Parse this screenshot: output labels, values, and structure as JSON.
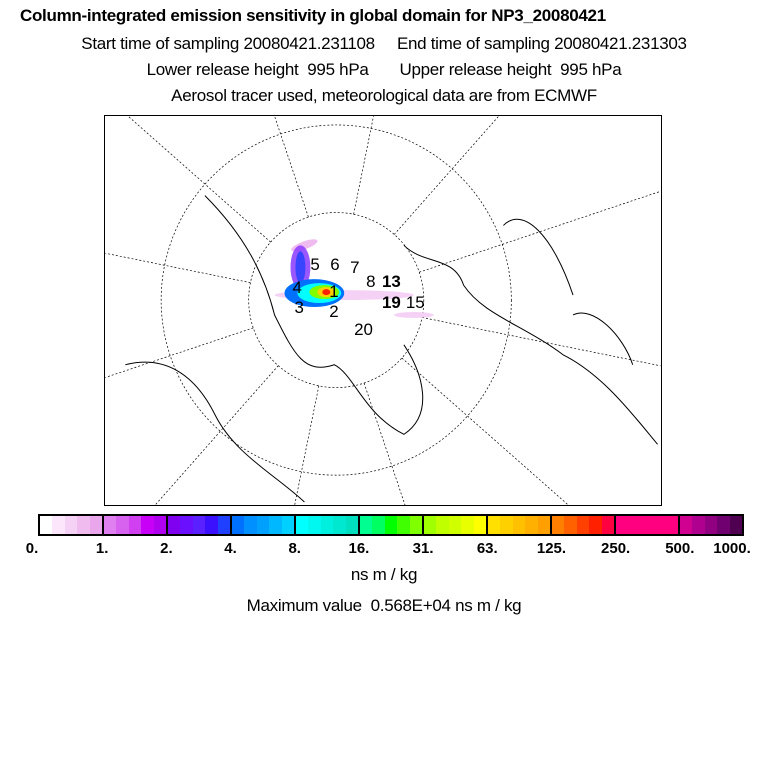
{
  "header": {
    "title": "Column-integrated emission sensitivity in global domain for NP3_20080421",
    "line2": "Start time of sampling 20080421.231108     End time of sampling 20080421.231303",
    "line3": "Lower release height  995 hPa       Upper release height  995 hPa",
    "line4": "Aerosol tracer used, meteorological data are from ECMWF"
  },
  "map": {
    "day_labels": [
      "1",
      "2",
      "3",
      "4",
      "5",
      "6",
      "7",
      "8",
      "13",
      "19",
      "15",
      "20"
    ]
  },
  "colorbar": {
    "ticks": [
      "0.",
      "1.",
      "2.",
      "4.",
      "8.",
      "16.",
      "31.",
      "63.",
      "125.",
      "250.",
      "500.",
      "1000."
    ],
    "colors": [
      [
        "#ffffff",
        "#fbe6fb",
        "#f5d2f5",
        "#f0bcf0",
        "#eaa6ea"
      ],
      [
        "#e080f0",
        "#d862f0",
        "#d040f0",
        "#c800f8",
        "#b000f0"
      ],
      [
        "#8000f0",
        "#6a10ff",
        "#5a20ff",
        "#3a10ff",
        "#2040ff"
      ],
      [
        "#0070ff",
        "#0090ff",
        "#00a0ff",
        "#00b8ff",
        "#00d0ff"
      ],
      [
        "#00ffff",
        "#00f8f0",
        "#00f0e0",
        "#00e8d0",
        "#00e0c0"
      ],
      [
        "#00ff90",
        "#00ff60",
        "#00ff00",
        "#40ff00",
        "#80ff00"
      ],
      [
        "#a0ff00",
        "#c0ff00",
        "#d0ff00",
        "#e8ff00",
        "#ffff00"
      ],
      [
        "#ffe000",
        "#ffd000",
        "#ffc000",
        "#ffb000",
        "#ffa000"
      ],
      [
        "#ff8000",
        "#ff6000",
        "#ff4000",
        "#ff2000",
        "#ff0040"
      ],
      [
        "#ff0080",
        "#ff0080",
        "#ff0080",
        "#ff0080",
        "#ff0080"
      ],
      [
        "#d00090",
        "#b00090",
        "#900080",
        "#700070",
        "#500050"
      ]
    ],
    "unit": "ns m / kg",
    "max_value": "Maximum value  0.568E+04 ns m / kg"
  }
}
